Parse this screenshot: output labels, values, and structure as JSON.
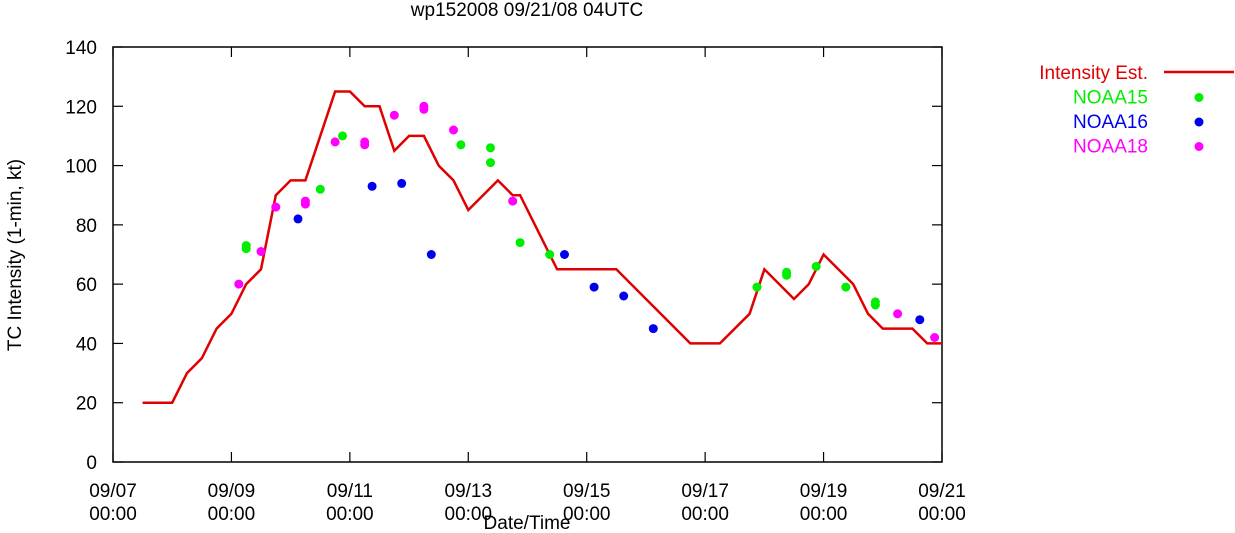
{
  "chart_data": {
    "type": "line",
    "title": "wp152008 09/21/08 04UTC",
    "xlabel": "Date/Time",
    "ylabel": "TC Intensity (1-min, kt)",
    "ylim": [
      0,
      140
    ],
    "yticks": [
      0,
      20,
      40,
      60,
      80,
      100,
      120,
      140
    ],
    "xlim": [
      "2008-09-07 00:00",
      "2008-09-21 00:00"
    ],
    "xticks": [
      {
        "date": "09/07",
        "time": "00:00"
      },
      {
        "date": "09/09",
        "time": "00:00"
      },
      {
        "date": "09/11",
        "time": "00:00"
      },
      {
        "date": "09/13",
        "time": "00:00"
      },
      {
        "date": "09/15",
        "time": "00:00"
      },
      {
        "date": "09/17",
        "time": "00:00"
      },
      {
        "date": "09/19",
        "time": "00:00"
      },
      {
        "date": "09/21",
        "time": "00:00"
      }
    ],
    "grid": false,
    "legend_position": "top-right, outside plot",
    "series": [
      {
        "name": "Intensity Est.",
        "style": "line",
        "color": "#e00000",
        "points": [
          [
            "2008-09-07 12:00",
            20
          ],
          [
            "2008-09-08 00:00",
            20
          ],
          [
            "2008-09-08 06:00",
            30
          ],
          [
            "2008-09-08 12:00",
            35
          ],
          [
            "2008-09-08 18:00",
            45
          ],
          [
            "2008-09-09 00:00",
            50
          ],
          [
            "2008-09-09 06:00",
            60
          ],
          [
            "2008-09-09 12:00",
            65
          ],
          [
            "2008-09-09 18:00",
            90
          ],
          [
            "2008-09-10 00:00",
            95
          ],
          [
            "2008-09-10 06:00",
            95
          ],
          [
            "2008-09-10 12:00",
            110
          ],
          [
            "2008-09-10 18:00",
            125
          ],
          [
            "2008-09-11 00:00",
            125
          ],
          [
            "2008-09-11 06:00",
            120
          ],
          [
            "2008-09-11 12:00",
            120
          ],
          [
            "2008-09-11 18:00",
            105
          ],
          [
            "2008-09-12 00:00",
            110
          ],
          [
            "2008-09-12 06:00",
            110
          ],
          [
            "2008-09-12 12:00",
            100
          ],
          [
            "2008-09-12 18:00",
            95
          ],
          [
            "2008-09-13 00:00",
            85
          ],
          [
            "2008-09-13 06:00",
            90
          ],
          [
            "2008-09-13 12:00",
            95
          ],
          [
            "2008-09-13 18:00",
            90
          ],
          [
            "2008-09-13 21:00",
            90
          ],
          [
            "2008-09-14 12:00",
            65
          ],
          [
            "2008-09-15 12:00",
            65
          ],
          [
            "2008-09-16 18:00",
            40
          ],
          [
            "2008-09-17 06:00",
            40
          ],
          [
            "2008-09-17 18:00",
            50
          ],
          [
            "2008-09-18 00:00",
            65
          ],
          [
            "2008-09-18 12:00",
            55
          ],
          [
            "2008-09-18 18:00",
            60
          ],
          [
            "2008-09-19 00:00",
            70
          ],
          [
            "2008-09-19 12:00",
            60
          ],
          [
            "2008-09-19 18:00",
            50
          ],
          [
            "2008-09-20 00:00",
            45
          ],
          [
            "2008-09-20 12:00",
            45
          ],
          [
            "2008-09-20 18:00",
            40
          ],
          [
            "2008-09-21 00:00",
            40
          ]
        ]
      },
      {
        "name": "NOAA15",
        "style": "points",
        "color": "#00ee00",
        "points": [
          [
            "2008-09-09 06:00",
            72
          ],
          [
            "2008-09-09 06:00",
            73
          ],
          [
            "2008-09-10 12:00",
            92
          ],
          [
            "2008-09-10 21:00",
            110
          ],
          [
            "2008-09-12 21:00",
            107
          ],
          [
            "2008-09-13 09:00",
            106
          ],
          [
            "2008-09-13 09:00",
            101
          ],
          [
            "2008-09-13 21:00",
            74
          ],
          [
            "2008-09-14 09:00",
            70
          ],
          [
            "2008-09-17 21:00",
            59
          ],
          [
            "2008-09-18 09:00",
            64
          ],
          [
            "2008-09-18 09:00",
            63
          ],
          [
            "2008-09-18 21:00",
            66
          ],
          [
            "2008-09-19 09:00",
            59
          ],
          [
            "2008-09-19 21:00",
            54
          ],
          [
            "2008-09-19 21:00",
            53
          ]
        ]
      },
      {
        "name": "NOAA16",
        "style": "points",
        "color": "#0000ee",
        "points": [
          [
            "2008-09-10 03:00",
            82
          ],
          [
            "2008-09-11 09:00",
            93
          ],
          [
            "2008-09-11 21:00",
            94
          ],
          [
            "2008-09-12 09:00",
            70
          ],
          [
            "2008-09-14 15:00",
            70
          ],
          [
            "2008-09-15 03:00",
            59
          ],
          [
            "2008-09-15 15:00",
            56
          ],
          [
            "2008-09-16 03:00",
            45
          ],
          [
            "2008-09-20 15:00",
            48
          ]
        ]
      },
      {
        "name": "NOAA18",
        "style": "points",
        "color": "#ff00ff",
        "points": [
          [
            "2008-09-09 03:00",
            60
          ],
          [
            "2008-09-09 12:00",
            71
          ],
          [
            "2008-09-09 18:00",
            86
          ],
          [
            "2008-09-10 06:00",
            88
          ],
          [
            "2008-09-10 06:00",
            87
          ],
          [
            "2008-09-10 18:00",
            108
          ],
          [
            "2008-09-11 06:00",
            108
          ],
          [
            "2008-09-11 06:00",
            107
          ],
          [
            "2008-09-11 18:00",
            117
          ],
          [
            "2008-09-12 06:00",
            120
          ],
          [
            "2008-09-12 06:00",
            119
          ],
          [
            "2008-09-12 18:00",
            112
          ],
          [
            "2008-09-13 18:00",
            88
          ],
          [
            "2008-09-20 06:00",
            50
          ],
          [
            "2008-09-20 21:00",
            42
          ]
        ]
      }
    ]
  }
}
